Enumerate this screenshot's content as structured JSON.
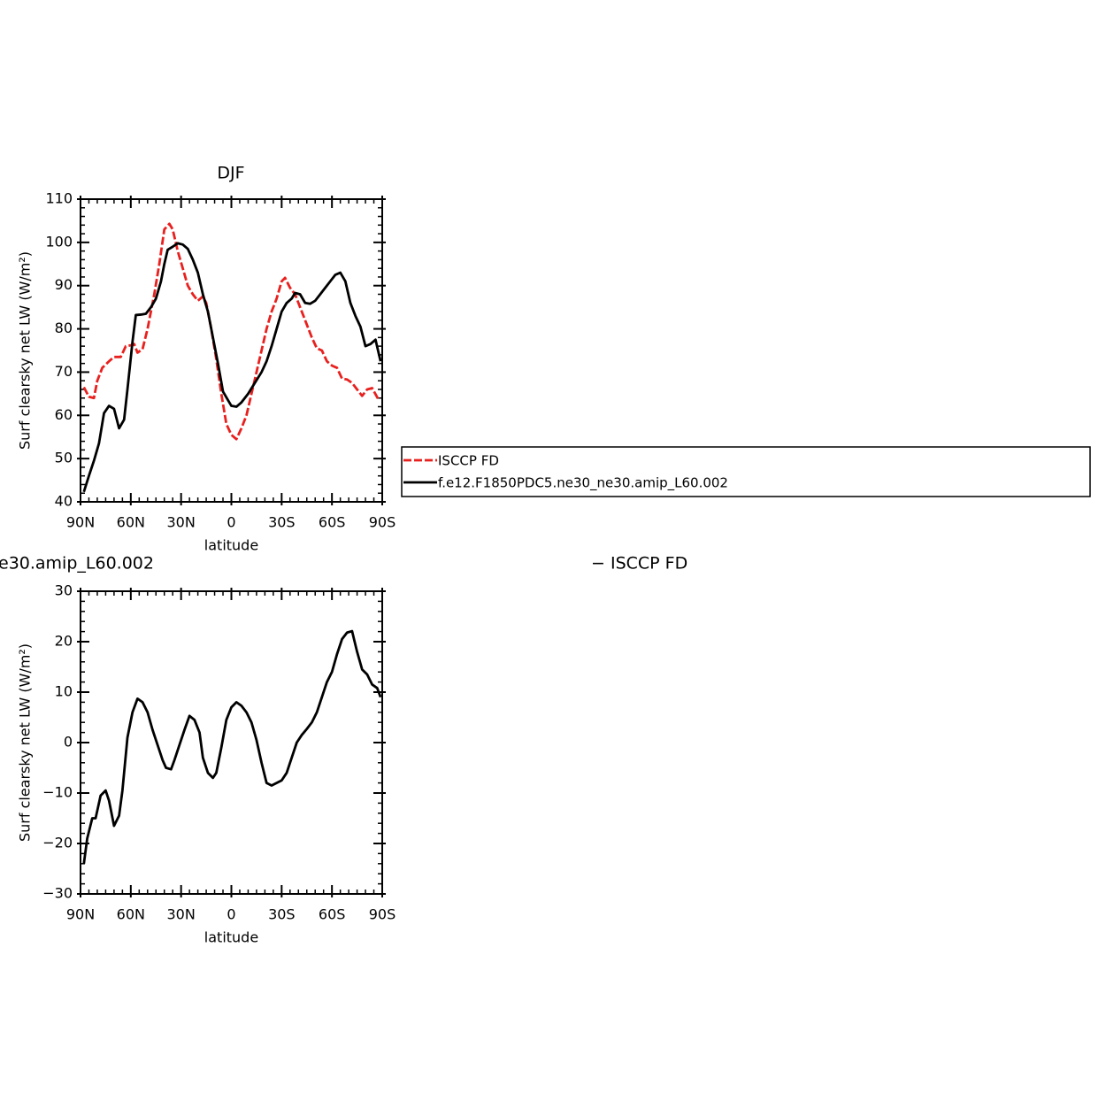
{
  "chart_data": [
    {
      "type": "line",
      "title": "DJF",
      "ylabel": "Surf clearsky net LW (W/m²)",
      "xlabel": "latitude",
      "xlim": [
        90,
        -90
      ],
      "xticks": [
        {
          "value": 90,
          "label": "90N"
        },
        {
          "value": 60,
          "label": "60N"
        },
        {
          "value": 30,
          "label": "30N"
        },
        0,
        {
          "value": -30,
          "label": "30S"
        },
        {
          "value": -60,
          "label": "60S"
        },
        {
          "value": -90,
          "label": "90S"
        }
      ],
      "ylim": [
        40,
        110
      ],
      "yticks": [
        40,
        50,
        60,
        70,
        80,
        90,
        100,
        110
      ],
      "legend": "right",
      "series": [
        {
          "name": "ISCCP FD",
          "color": "#e8201e",
          "dashed": true,
          "x": [
            88,
            85,
            82,
            80,
            77,
            73,
            70,
            66,
            63,
            60,
            58,
            56,
            53,
            50,
            46,
            43,
            40,
            37,
            35,
            32,
            29,
            26,
            23,
            20,
            17,
            15,
            12,
            9,
            6,
            3,
            0,
            -3,
            -6,
            -9,
            -12,
            -15,
            -18,
            -21,
            -24,
            -27,
            -30,
            -32,
            -35,
            -38,
            -41,
            -45,
            -48,
            -51,
            -54,
            -57,
            -60,
            -63,
            -66,
            -69,
            -72,
            -75,
            -78,
            -81,
            -84,
            -88
          ],
          "values": [
            66.5,
            64.3,
            64,
            68,
            71,
            72.5,
            73.5,
            73.5,
            76,
            76.2,
            76.5,
            74.5,
            75.3,
            80,
            88,
            95,
            103,
            104.3,
            103,
            98,
            94,
            90,
            88,
            86.5,
            87.5,
            86,
            80,
            73,
            65,
            58,
            55.5,
            54.5,
            57,
            60,
            65,
            70,
            75,
            80,
            84,
            87,
            91,
            91.8,
            89.5,
            88,
            85,
            81,
            78,
            75.5,
            75,
            72.5,
            71.5,
            71,
            68.5,
            68.3,
            67.5,
            66,
            64.5,
            66,
            66.3,
            63.5
          ]
        },
        {
          "name": "f.e12.F1850PDC5.ne30_ne30.amip_L60.002",
          "color": "#000000",
          "dashed": false,
          "x": [
            88,
            85,
            82,
            79,
            76,
            73,
            70,
            67,
            64,
            62,
            59,
            57,
            54,
            51,
            48,
            45,
            42,
            40,
            38,
            35,
            32,
            29,
            26,
            23,
            20,
            17,
            14,
            11,
            8,
            5,
            2,
            0,
            -3,
            -6,
            -10,
            -14,
            -18,
            -21,
            -24,
            -27,
            -30,
            -33,
            -36,
            -38,
            -41,
            -44,
            -47,
            -50,
            -53,
            -56,
            -59,
            -62,
            -65,
            -68,
            -71,
            -74,
            -77,
            -80,
            -83,
            -86,
            -89
          ],
          "values": [
            42.3,
            46,
            49.5,
            53.5,
            60.5,
            62.2,
            61.5,
            57,
            59,
            66,
            77,
            83.2,
            83.3,
            83.5,
            85,
            87,
            91,
            95,
            98.3,
            99,
            99.8,
            99.5,
            98.5,
            96,
            93,
            88,
            84,
            78,
            72,
            65.5,
            63.5,
            62.2,
            62,
            63,
            65,
            67.5,
            70,
            72.5,
            76,
            80,
            84,
            86,
            87,
            88.3,
            88,
            86,
            85.8,
            86.5,
            88,
            89.5,
            91,
            92.5,
            93,
            91,
            86,
            83,
            80.5,
            76,
            76.5,
            77.5,
            72.5
          ]
        }
      ]
    },
    {
      "type": "line",
      "title_left": "e30.amip_L60.002",
      "title_right": "− ISCCP FD",
      "ylabel": "Surf clearsky net LW (W/m²)",
      "xlabel": "latitude",
      "xlim": [
        90,
        -90
      ],
      "xticks": [
        {
          "value": 90,
          "label": "90N"
        },
        {
          "value": 60,
          "label": "60N"
        },
        {
          "value": 30,
          "label": "30N"
        },
        0,
        {
          "value": -30,
          "label": "30S"
        },
        {
          "value": -60,
          "label": "60S"
        },
        {
          "value": -90,
          "label": "90S"
        }
      ],
      "ylim": [
        -30,
        30
      ],
      "yticks": [
        {
          "value": -30,
          "label": "−30"
        },
        {
          "value": -20,
          "label": "−20"
        },
        {
          "value": -10,
          "label": "−10"
        },
        0,
        10,
        20,
        30
      ],
      "series": [
        {
          "color": "#000000",
          "dashed": false,
          "x": [
            88,
            86,
            83,
            81,
            78,
            75,
            73,
            70,
            67,
            65,
            62,
            59,
            56,
            53,
            50,
            47,
            44,
            41,
            39,
            36,
            34,
            31,
            28,
            25,
            22,
            19,
            17,
            14,
            11,
            9,
            6,
            3,
            0,
            -3,
            -6,
            -9,
            -12,
            -15,
            -18,
            -21,
            -24,
            -27,
            -30,
            -33,
            -36,
            -39,
            -42,
            -45,
            -48,
            -51,
            -54,
            -57,
            -60,
            -63,
            -66,
            -69,
            -72,
            -75,
            -78,
            -81,
            -84,
            -87,
            -89
          ],
          "values": [
            -24,
            -19,
            -15,
            -15,
            -10.5,
            -9.5,
            -11.5,
            -16.5,
            -14.5,
            -9.5,
            1,
            6,
            8.7,
            8,
            6,
            2.5,
            -0.5,
            -3.5,
            -5,
            -5.3,
            -3.5,
            -0.5,
            2.5,
            5.3,
            4.5,
            2,
            -3,
            -6,
            -7,
            -6,
            -1,
            4.5,
            7,
            8,
            7.3,
            6,
            4,
            0.5,
            -4,
            -8,
            -8.5,
            -8,
            -7.5,
            -6,
            -3,
            0,
            1.5,
            2.7,
            4,
            6,
            9,
            12,
            14,
            17.5,
            20.5,
            21.8,
            22.1,
            18,
            14.5,
            13.5,
            11.5,
            10.8,
            9
          ]
        }
      ]
    }
  ]
}
